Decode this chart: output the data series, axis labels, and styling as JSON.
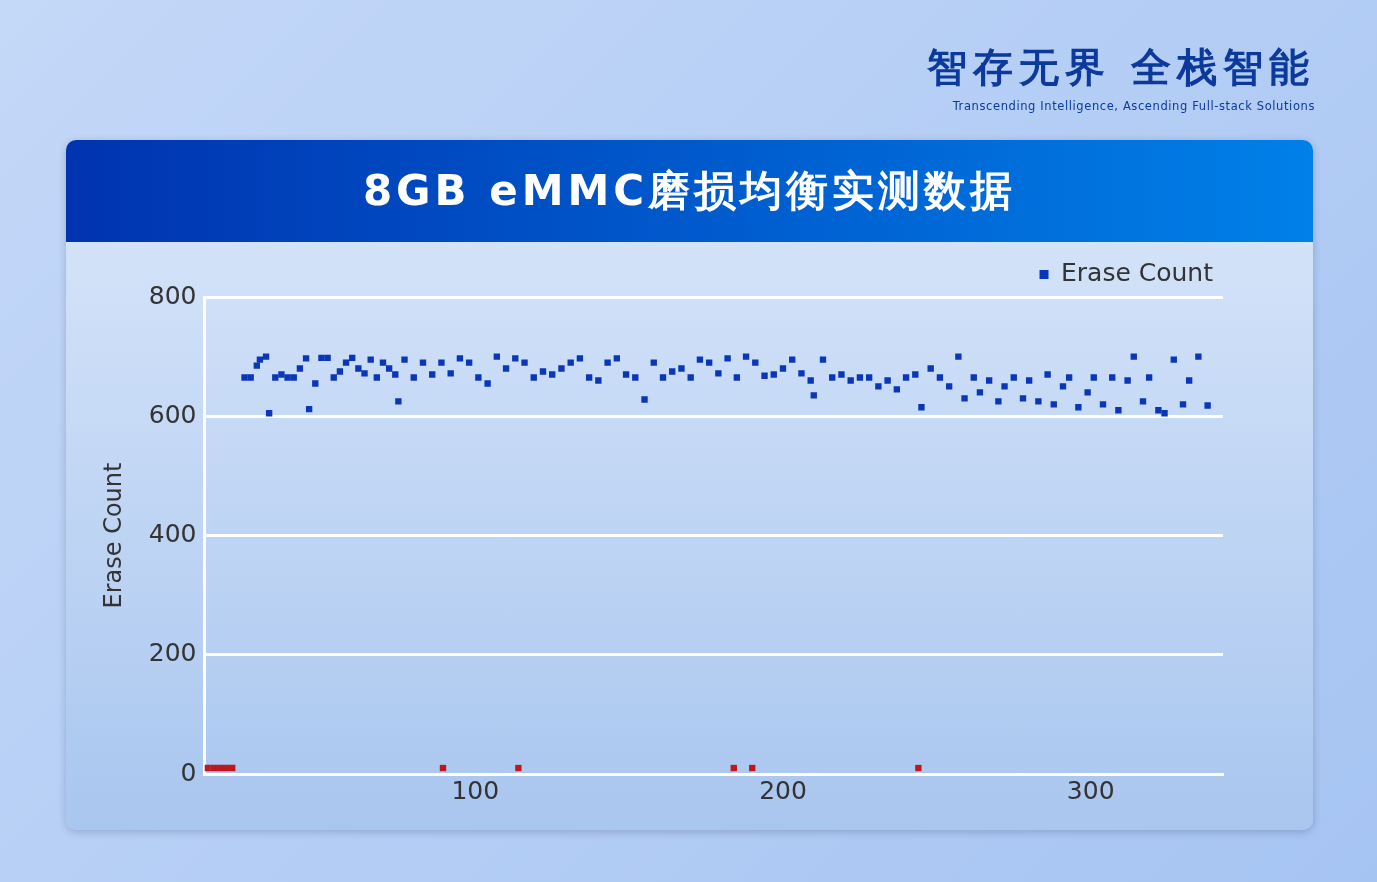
{
  "chart_data": {
    "type": "scatter",
    "title": "8GB eMMC磨损均衡实测数据",
    "annotations": [
      "智存无界  全栈智能",
      "Transcending Intelligence, Ascending Full-stack Solutions"
    ],
    "ylabel": "Erase Count",
    "xlim": [
      12,
      343
    ],
    "xticks": [
      100,
      200,
      300
    ],
    "ylim": [
      0,
      800
    ],
    "yticks": [
      0,
      200,
      400,
      600,
      800
    ],
    "grid": "y",
    "legend": "top right",
    "marker": "square",
    "series": [
      {
        "name": "Erase Count",
        "color": "#0a36b8",
        "x": [
          25,
          27,
          29,
          30,
          32,
          33,
          35,
          37,
          39,
          41,
          43,
          45,
          46,
          48,
          50,
          52,
          54,
          56,
          58,
          60,
          62,
          64,
          66,
          68,
          70,
          72,
          74,
          75,
          77,
          80,
          83,
          86,
          89,
          92,
          95,
          98,
          101,
          104,
          107,
          110,
          113,
          116,
          119,
          122,
          125,
          128,
          131,
          134,
          137,
          140,
          143,
          146,
          149,
          152,
          155,
          158,
          161,
          164,
          167,
          170,
          173,
          176,
          179,
          182,
          185,
          188,
          191,
          194,
          197,
          200,
          203,
          206,
          209,
          210,
          213,
          216,
          219,
          222,
          225,
          228,
          231,
          234,
          237,
          240,
          243,
          245,
          248,
          251,
          254,
          257,
          259,
          262,
          264,
          267,
          270,
          272,
          275,
          278,
          280,
          283,
          286,
          288,
          291,
          293,
          296,
          299,
          301,
          304,
          307,
          309,
          312,
          314,
          317,
          319,
          322,
          324,
          327,
          330,
          332,
          335,
          338
        ],
        "values": [
          665,
          665,
          685,
          695,
          700,
          605,
          665,
          670,
          665,
          665,
          680,
          697,
          612,
          655,
          698,
          698,
          665,
          675,
          690,
          698,
          680,
          672,
          695,
          665,
          690,
          680,
          670,
          625,
          695,
          665,
          690,
          670,
          690,
          672,
          697,
          690,
          665,
          655,
          700,
          680,
          697,
          690,
          665,
          675,
          670,
          680,
          690,
          697,
          665,
          660,
          690,
          697,
          670,
          665,
          628,
          690,
          665,
          675,
          680,
          665,
          695,
          690,
          672,
          697,
          665,
          700,
          690,
          668,
          670,
          680,
          695,
          672,
          660,
          635,
          695,
          665,
          670,
          660,
          665,
          665,
          650,
          660,
          645,
          665,
          670,
          615,
          680,
          665,
          650,
          700,
          630,
          665,
          640,
          660,
          625,
          650,
          665,
          630,
          660,
          625,
          670,
          620,
          650,
          665,
          615,
          640,
          665,
          620,
          665,
          610,
          660,
          700,
          625,
          665,
          610,
          605,
          695,
          620,
          660,
          700,
          618
        ]
      },
      {
        "color": "#c0161e",
        "x": [
          13,
          15,
          17,
          19,
          21,
          89.5,
          114,
          184,
          190,
          244
        ],
        "values": [
          10,
          10,
          10,
          10,
          10,
          10,
          10,
          10,
          10,
          10
        ]
      }
    ]
  }
}
